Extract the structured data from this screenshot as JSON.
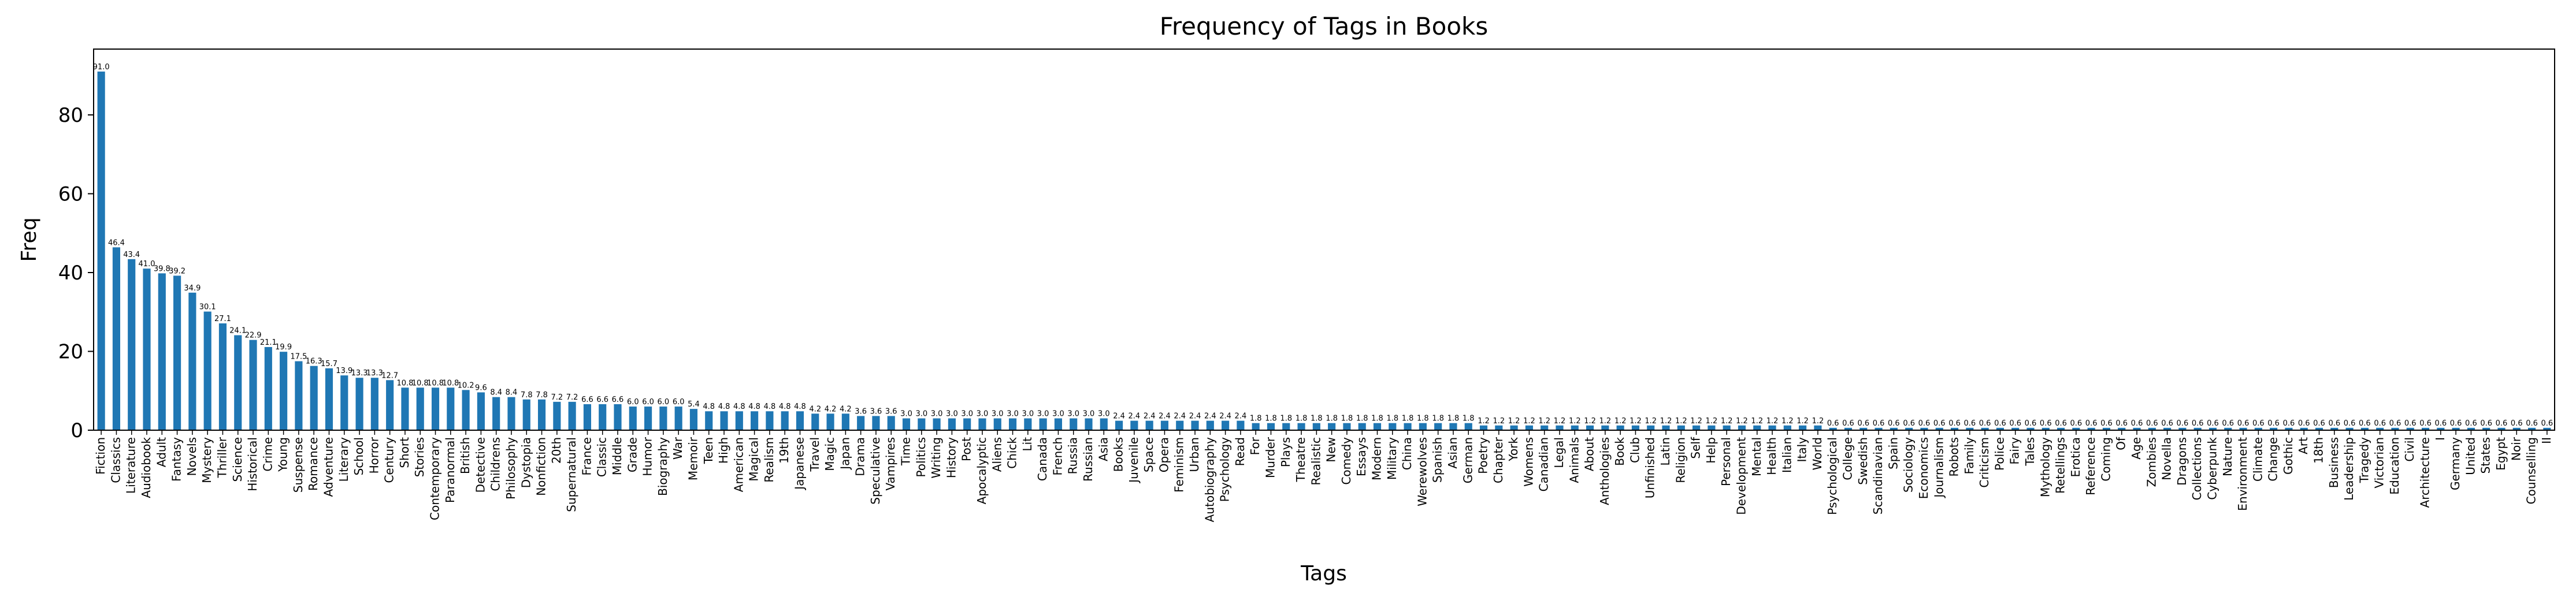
{
  "chart_data": {
    "type": "bar",
    "title": "Frequency of Tags in Books",
    "x_label": "Tags",
    "y_label": "Freq",
    "color": "#1f77b4",
    "categories": [
      "Fiction",
      "Classics",
      "Literature",
      "Audiobook",
      "Adult",
      "Fantasy",
      "Novels",
      "Mystery",
      "Thriller",
      "Science",
      "Historical",
      "Crime",
      "Young",
      "Suspense",
      "Romance",
      "Adventure",
      "Literary",
      "School",
      "Horror",
      "Century",
      "Short",
      "Stories",
      "Contemporary",
      "Paranormal",
      "British",
      "Detective",
      "Childrens",
      "Philosophy",
      "Dystopia",
      "Nonfiction",
      "20th",
      "Supernatural",
      "France",
      "Classic",
      "Middle",
      "Grade",
      "Humor",
      "Biography",
      "War",
      "Memoir",
      "Teen",
      "High",
      "American",
      "Magical",
      "Realism",
      "19th",
      "Japanese",
      "Travel",
      "Magic",
      "Japan",
      "Drama",
      "Speculative",
      "Vampires",
      "Time",
      "Politics",
      "Writing",
      "History",
      "Post",
      "Apocalyptic",
      "Aliens",
      "Chick",
      "Lit",
      "Canada",
      "French",
      "Russia",
      "Russian",
      "Asia",
      "Books",
      "Juvenile",
      "Space",
      "Opera",
      "Feminism",
      "Urban",
      "Autobiography",
      "Psychology",
      "Read",
      "For",
      "Murder",
      "Plays",
      "Theatre",
      "Realistic",
      "New",
      "Comedy",
      "Essays",
      "Modern",
      "Military",
      "China",
      "Werewolves",
      "Spanish",
      "Asian",
      "German",
      "Poetry",
      "Chapter",
      "York",
      "Womens",
      "Canadian",
      "Legal",
      "Animals",
      "About",
      "Anthologies",
      "Book",
      "Club",
      "Unfinished",
      "Latin",
      "Religion",
      "Self",
      "Help",
      "Personal",
      "Development",
      "Mental",
      "Health",
      "Italian",
      "Italy",
      "World",
      "Psychological",
      "College",
      "Swedish",
      "Scandinavian",
      "Spain",
      "Sociology",
      "Economics",
      "Journalism",
      "Robots",
      "Family",
      "Criticism",
      "Police",
      "Fairy",
      "Tales",
      "Mythology",
      "Retellings",
      "Erotica",
      "Reference",
      "Coming",
      "Of",
      "Age",
      "Zombies",
      "Novella",
      "Dragons",
      "Collections",
      "Cyberpunk",
      "Nature",
      "Environment",
      "Climate",
      "Change",
      "Gothic",
      "Art",
      "18th",
      "Business",
      "Leadership",
      "Tragedy",
      "Victorian",
      "Education",
      "Civil",
      "Architecture",
      "I",
      "Germany",
      "United",
      "States",
      "Egypt",
      "Noir",
      "Counselling",
      "II"
    ],
    "values": [
      91.0,
      46.4,
      43.4,
      41.0,
      39.8,
      39.2,
      34.9,
      30.1,
      27.1,
      24.1,
      22.9,
      21.1,
      19.9,
      17.5,
      16.3,
      15.7,
      13.9,
      13.3,
      13.3,
      12.7,
      10.8,
      10.8,
      10.8,
      10.8,
      10.2,
      9.6,
      8.4,
      8.4,
      7.8,
      7.8,
      7.2,
      7.2,
      6.6,
      6.6,
      6.6,
      6.0,
      6.0,
      6.0,
      6.0,
      5.4,
      4.8,
      4.8,
      4.8,
      4.8,
      4.8,
      4.8,
      4.8,
      4.2,
      4.2,
      4.2,
      3.6,
      3.6,
      3.6,
      3.0,
      3.0,
      3.0,
      3.0,
      3.0,
      3.0,
      3.0,
      3.0,
      3.0,
      3.0,
      3.0,
      3.0,
      3.0,
      3.0,
      2.4,
      2.4,
      2.4,
      2.4,
      2.4,
      2.4,
      2.4,
      2.4,
      2.4,
      1.8,
      1.8,
      1.8,
      1.8,
      1.8,
      1.8,
      1.8,
      1.8,
      1.8,
      1.8,
      1.8,
      1.8,
      1.8,
      1.8,
      1.8,
      1.2,
      1.2,
      1.2,
      1.2,
      1.2,
      1.2,
      1.2,
      1.2,
      1.2,
      1.2,
      1.2,
      1.2,
      1.2,
      1.2,
      1.2,
      1.2,
      1.2,
      1.2,
      1.2,
      1.2,
      1.2,
      1.2,
      1.2,
      0.6,
      0.6,
      0.6,
      0.6,
      0.6,
      0.6,
      0.6,
      0.6,
      0.6,
      0.6,
      0.6,
      0.6,
      0.6,
      0.6,
      0.6,
      0.6,
      0.6,
      0.6,
      0.6,
      0.6,
      0.6,
      0.6,
      0.6,
      0.6,
      0.6,
      0.6,
      0.6,
      0.6,
      0.6,
      0.6,
      0.6,
      0.6,
      0.6,
      0.6,
      0.6,
      0.6,
      0.6,
      0.6,
      0.6,
      0.6,
      0.6,
      0.6,
      0.6,
      0.6,
      0.6,
      0.6,
      0.6,
      0.6
    ],
    "value_labels": [
      "91.0",
      "46.4",
      "43.4",
      "41.0",
      "39.8",
      "39.2",
      "34.9",
      "30.1",
      "27.1",
      "24.1",
      "22.9",
      "21.1",
      "19.9",
      "17.5",
      "16.3",
      "15.7",
      "13.9",
      "13.3",
      "13.3",
      "12.7",
      "10.8",
      "10.8",
      "10.8",
      "10.8",
      "10.2",
      "9.6",
      "8.4",
      "8.4",
      "7.8",
      "7.8",
      "7.2",
      "7.2",
      "6.6",
      "6.6",
      "6.6",
      "6.0",
      "6.0",
      "6.0",
      "6.0",
      "5.4",
      "4.8",
      "4.8",
      "4.8",
      "4.8",
      "4.8",
      "4.8",
      "4.8",
      "4.2",
      "4.2",
      "4.2",
      "3.6",
      "3.6",
      "3.6",
      "3.0",
      "3.0",
      "3.0",
      "3.0",
      "3.0",
      "3.0",
      "3.0",
      "3.0",
      "3.0",
      "3.0",
      "3.0",
      "3.0",
      "3.0",
      "3.0",
      "2.4",
      "2.4",
      "2.4",
      "2.4",
      "2.4",
      "2.4",
      "2.4",
      "2.4",
      "2.4",
      "1.8",
      "1.8",
      "1.8",
      "1.8",
      "1.8",
      "1.8",
      "1.8",
      "1.8",
      "1.8",
      "1.8",
      "1.8",
      "1.8",
      "1.8",
      "1.8",
      "1.8",
      "1.2",
      "1.2",
      "1.2",
      "1.2",
      "1.2",
      "1.2",
      "1.2",
      "1.2",
      "1.2",
      "1.2",
      "1.2",
      "1.2",
      "1.2",
      "1.2",
      "1.2",
      "1.2",
      "1.2",
      "1.2",
      "1.2",
      "1.2",
      "1.2",
      "1.2",
      "1.2",
      "0.6",
      "0.6",
      "0.6",
      "0.6",
      "0.6",
      "0.6",
      "0.6",
      "0.6",
      "0.6",
      "0.6",
      "0.6",
      "0.6",
      "0.6",
      "0.6",
      "0.6",
      "0.6",
      "0.6",
      "0.6",
      "0.6",
      "0.6",
      "0.6",
      "0.6",
      "0.6",
      "0.6",
      "0.6",
      "0.6",
      "0.6",
      "0.6",
      "0.6",
      "0.6",
      "0.6",
      "0.6",
      "0.6",
      "0.6",
      "0.6",
      "0.6",
      "0.6",
      "0.6",
      "0.6",
      "0.6",
      "0.6",
      "0.6",
      "0.6",
      "0.6",
      "0.6",
      "0.6",
      "0.6",
      "0.6"
    ],
    "ylim": [
      0,
      96.7
    ],
    "yticks": [
      0,
      20,
      40,
      60,
      80
    ]
  }
}
